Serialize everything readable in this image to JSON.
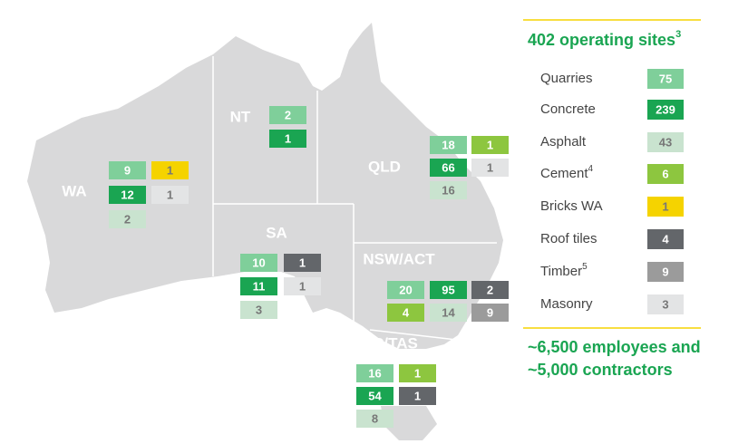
{
  "summary": {
    "title": "402 operating sites",
    "title_note": "3",
    "footer_lines": [
      "~6,500 employees and",
      "~5,000 contractors"
    ]
  },
  "legend": [
    {
      "label": "Quarries",
      "value": 75,
      "color": "#7fcf9a"
    },
    {
      "label": "Concrete",
      "value": 239,
      "color": "#1aa552"
    },
    {
      "label": "Asphalt",
      "value": 43,
      "color": "#c9e3cf"
    },
    {
      "label": "Cement",
      "note": "4",
      "value": 6,
      "color": "#8dc63f"
    },
    {
      "label": "Bricks WA",
      "value": 1,
      "color": "#f5d300"
    },
    {
      "label": "Roof tiles",
      "value": 4,
      "color": "#63666a"
    },
    {
      "label": "Timber",
      "note": "5",
      "value": 9,
      "color": "#9b9b9b"
    },
    {
      "label": "Masonry",
      "value": 3,
      "color": "#e3e4e5"
    }
  ],
  "regions": [
    {
      "name": "WA",
      "boxes": [
        {
          "value": 9,
          "color": "#7fcf9a"
        },
        {
          "value": 1,
          "color": "#f5d300"
        },
        {
          "value": 12,
          "color": "#1aa552"
        },
        {
          "value": 1,
          "color": "#e3e4e5"
        },
        {
          "value": 2,
          "color": "#c9e3cf"
        }
      ]
    },
    {
      "name": "NT",
      "boxes": [
        {
          "value": 2,
          "color": "#7fcf9a"
        },
        {
          "value": 1,
          "color": "#1aa552"
        }
      ]
    },
    {
      "name": "QLD",
      "boxes": [
        {
          "value": 18,
          "color": "#7fcf9a"
        },
        {
          "value": 1,
          "color": "#8dc63f"
        },
        {
          "value": 66,
          "color": "#1aa552"
        },
        {
          "value": 1,
          "color": "#e3e4e5"
        },
        {
          "value": 16,
          "color": "#c9e3cf"
        }
      ]
    },
    {
      "name": "SA",
      "boxes": [
        {
          "value": 10,
          "color": "#7fcf9a"
        },
        {
          "value": 1,
          "color": "#63666a"
        },
        {
          "value": 11,
          "color": "#1aa552"
        },
        {
          "value": 1,
          "color": "#e3e4e5"
        },
        {
          "value": 3,
          "color": "#c9e3cf"
        }
      ]
    },
    {
      "name": "NSW/ACT",
      "boxes": [
        {
          "value": 20,
          "color": "#7fcf9a"
        },
        {
          "value": 95,
          "color": "#1aa552"
        },
        {
          "value": 2,
          "color": "#63666a"
        },
        {
          "value": 4,
          "color": "#8dc63f"
        },
        {
          "value": 14,
          "color": "#c9e3cf"
        },
        {
          "value": 9,
          "color": "#9b9b9b"
        }
      ]
    },
    {
      "name": "VIC/TAS",
      "boxes": [
        {
          "value": 16,
          "color": "#7fcf9a"
        },
        {
          "value": 1,
          "color": "#8dc63f"
        },
        {
          "value": 54,
          "color": "#1aa552"
        },
        {
          "value": 1,
          "color": "#63666a"
        },
        {
          "value": 8,
          "color": "#c9e3cf"
        }
      ]
    }
  ]
}
